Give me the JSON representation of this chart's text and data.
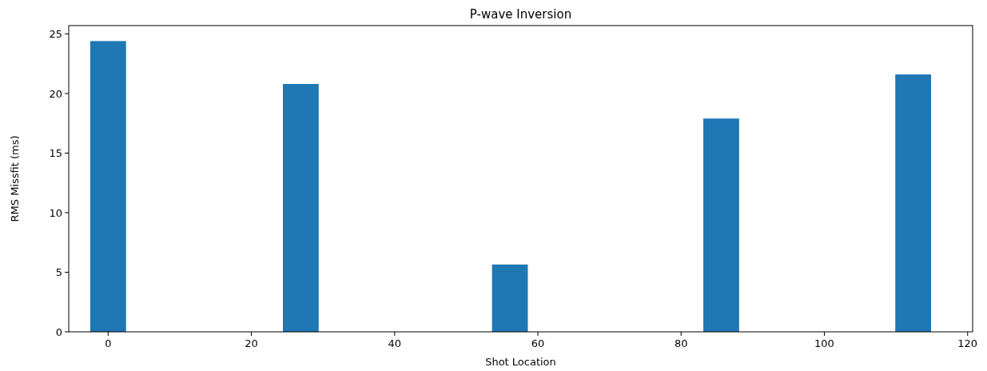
{
  "chart_data": {
    "type": "bar",
    "title": "P-wave Inversion",
    "xlabel": "Shot Location",
    "ylabel": "RMS Missfit (ms)",
    "x": [
      0,
      26.9,
      56.1,
      85.6,
      112.4
    ],
    "values": [
      24.4,
      20.8,
      5.65,
      17.9,
      21.6
    ],
    "color": "#1f77b4",
    "xlim": [
      -5.5,
      120.7
    ],
    "ylim": [
      0,
      25.7
    ],
    "xticks": [
      0,
      20,
      40,
      60,
      80,
      100,
      120
    ],
    "yticks": [
      0,
      5,
      10,
      15,
      20,
      25
    ],
    "grid": false
  }
}
